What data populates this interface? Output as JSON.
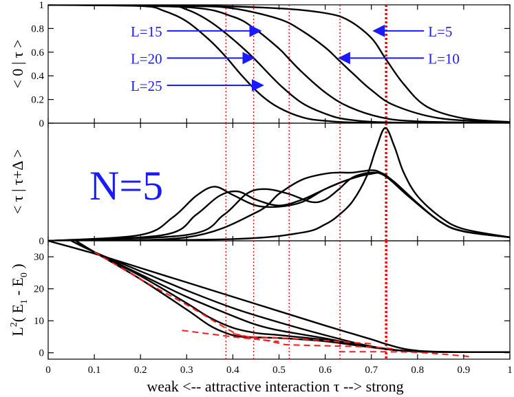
{
  "chart_data": {
    "type": "line",
    "title": "",
    "xlabel": "weak  <--  attractive interaction τ  -->  strong",
    "xlim": [
      0,
      1
    ],
    "x_ticks": [
      0,
      0.1,
      0.2,
      0.3,
      0.4,
      0.5,
      0.6,
      0.7,
      0.8,
      0.9,
      1
    ],
    "x_tick_labels": [
      "0",
      "0.1",
      "0.2",
      "0.3",
      "0.4",
      "0.5",
      "0.6",
      "0.7",
      "0.8",
      "0.9",
      "1"
    ],
    "annotation_N": "N=5",
    "vlines": [
      {
        "x": 0.385,
        "style": "dotted",
        "color": "#ff0000"
      },
      {
        "x": 0.445,
        "style": "dotted",
        "color": "#ff0000"
      },
      {
        "x": 0.522,
        "style": "dotted",
        "color": "#ff0000"
      },
      {
        "x": 0.632,
        "style": "dotted",
        "color": "#ff0000"
      },
      {
        "x": 0.732,
        "style": "dotted-thick",
        "color": "#ff0000"
      }
    ],
    "panels": [
      {
        "name": "overlap",
        "ylabel": "< 0 | τ >",
        "ylim": [
          0,
          1
        ],
        "y_ticks": [
          0,
          0.2,
          0.4,
          0.6,
          0.8,
          1
        ],
        "y_tick_labels": [
          "0",
          "0.2",
          "0.4",
          "0.6",
          "0.8",
          "1"
        ],
        "series": [
          {
            "name": "L=5",
            "x": [
              0,
              0.3,
              0.5,
              0.6,
              0.65,
              0.7,
              0.73,
              0.77,
              0.82,
              0.9,
              1.0
            ],
            "y": [
              1,
              0.995,
              0.97,
              0.93,
              0.87,
              0.72,
              0.55,
              0.33,
              0.14,
              0.04,
              0.01
            ]
          },
          {
            "name": "L=10",
            "x": [
              0,
              0.3,
              0.4,
              0.5,
              0.55,
              0.6,
              0.63,
              0.66,
              0.7,
              0.75,
              0.85,
              1.0
            ],
            "y": [
              1,
              0.99,
              0.97,
              0.88,
              0.78,
              0.64,
              0.53,
              0.42,
              0.28,
              0.15,
              0.04,
              0.005
            ]
          },
          {
            "name": "L=15",
            "x": [
              0,
              0.3,
              0.4,
              0.45,
              0.5,
              0.52,
              0.55,
              0.6,
              0.65,
              0.72,
              0.8,
              1.0
            ],
            "y": [
              1,
              0.98,
              0.9,
              0.79,
              0.63,
              0.55,
              0.43,
              0.26,
              0.14,
              0.05,
              0.015,
              0
            ]
          },
          {
            "name": "L=20",
            "x": [
              0,
              0.25,
              0.3,
              0.35,
              0.4,
              0.445,
              0.5,
              0.55,
              0.6,
              0.65,
              0.75,
              1.0
            ],
            "y": [
              1,
              0.99,
              0.96,
              0.86,
              0.71,
              0.55,
              0.33,
              0.17,
              0.08,
              0.03,
              0.005,
              0
            ]
          },
          {
            "name": "L=25",
            "x": [
              0,
              0.2,
              0.25,
              0.3,
              0.35,
              0.385,
              0.42,
              0.46,
              0.5,
              0.55,
              0.6,
              0.7,
              1.0
            ],
            "y": [
              1,
              0.99,
              0.95,
              0.86,
              0.7,
              0.56,
              0.4,
              0.24,
              0.13,
              0.05,
              0.02,
              0.003,
              0
            ]
          }
        ],
        "arrows": [
          {
            "label": "L=15",
            "text_x": 0.15,
            "text_y": 0.78,
            "tip_x": 0.46,
            "tip_y": 0.78,
            "direction": "right"
          },
          {
            "label": "L=20",
            "text_x": 0.15,
            "text_y": 0.55,
            "tip_x": 0.445,
            "tip_y": 0.55,
            "direction": "right"
          },
          {
            "label": "L=25",
            "text_x": 0.15,
            "text_y": 0.32,
            "tip_x": 0.465,
            "tip_y": 0.32,
            "direction": "right"
          },
          {
            "label": "L=5",
            "text_x": 0.82,
            "text_y": 0.78,
            "tip_x": 0.705,
            "tip_y": 0.78,
            "direction": "left"
          },
          {
            "label": "L=10",
            "text_x": 0.82,
            "text_y": 0.55,
            "tip_x": 0.63,
            "tip_y": 0.55,
            "direction": "left"
          }
        ]
      },
      {
        "name": "fidelity",
        "ylabel": "< τ | τ+Δ >",
        "ylim": [
          0,
          1
        ],
        "y_ticks": [
          0
        ],
        "y_tick_labels": [
          "0"
        ],
        "series": [
          {
            "name": "L=5",
            "x": [
              0,
              0.4,
              0.55,
              0.6,
              0.63,
              0.66,
              0.69,
              0.71,
              0.73,
              0.75,
              0.77,
              0.8,
              0.85,
              0.9,
              1.0
            ],
            "y": [
              0.0,
              0.015,
              0.07,
              0.14,
              0.22,
              0.34,
              0.55,
              0.78,
              0.96,
              0.8,
              0.58,
              0.38,
              0.2,
              0.1,
              0.03
            ]
          },
          {
            "name": "L=10",
            "x": [
              0,
              0.3,
              0.45,
              0.5,
              0.55,
              0.6,
              0.63,
              0.66,
              0.7,
              0.72,
              0.75,
              0.8,
              0.85,
              0.9,
              1.0
            ],
            "y": [
              0.0,
              0.03,
              0.24,
              0.4,
              0.52,
              0.57,
              0.58,
              0.58,
              0.6,
              0.58,
              0.5,
              0.32,
              0.16,
              0.08,
              0.03
            ]
          },
          {
            "name": "L=15",
            "x": [
              0,
              0.3,
              0.38,
              0.43,
              0.47,
              0.52,
              0.57,
              0.6,
              0.63,
              0.66,
              0.7,
              0.73,
              0.78,
              0.85,
              0.9,
              1.0
            ],
            "y": [
              0.0,
              0.05,
              0.22,
              0.4,
              0.44,
              0.4,
              0.33,
              0.35,
              0.44,
              0.54,
              0.58,
              0.55,
              0.38,
              0.16,
              0.08,
              0.03
            ]
          },
          {
            "name": "L=20",
            "x": [
              0,
              0.25,
              0.32,
              0.37,
              0.41,
              0.45,
              0.5,
              0.55,
              0.6,
              0.65,
              0.7,
              0.73,
              0.78,
              0.85,
              0.9,
              1.0
            ],
            "y": [
              0.0,
              0.05,
              0.22,
              0.38,
              0.42,
              0.35,
              0.3,
              0.35,
              0.44,
              0.52,
              0.57,
              0.56,
              0.38,
              0.16,
              0.08,
              0.03
            ]
          },
          {
            "name": "L=25",
            "x": [
              0,
              0.2,
              0.27,
              0.32,
              0.36,
              0.4,
              0.45,
              0.5,
              0.55,
              0.6,
              0.65,
              0.7,
              0.73,
              0.78,
              0.85,
              0.9,
              1.0
            ],
            "y": [
              0.0,
              0.05,
              0.2,
              0.38,
              0.46,
              0.39,
              0.3,
              0.29,
              0.33,
              0.44,
              0.52,
              0.57,
              0.56,
              0.38,
              0.16,
              0.08,
              0.03
            ]
          }
        ]
      },
      {
        "name": "gap",
        "ylabel": "L² ( E₁ - E₀ )",
        "ylabel_parts": {
          "L": "L",
          "sq": "2",
          "open": "( E",
          "sub1": "1",
          "mid": " - E",
          "sub0": "0",
          "close": " )"
        },
        "ylim": [
          -2,
          35
        ],
        "y_ticks": [
          0,
          10,
          20,
          30
        ],
        "y_tick_labels": [
          "0",
          "10",
          "20",
          "30"
        ],
        "series": [
          {
            "name": "L=5",
            "x": [
              0,
              0.1,
              0.2,
              0.3,
              0.4,
              0.5,
              0.6,
              0.7,
              0.73,
              0.78,
              0.85,
              1.0
            ],
            "y": [
              35,
              31,
              26.5,
              22,
              17.5,
              13,
              8.5,
              4.2,
              2.8,
              1.0,
              0.3,
              0.2
            ]
          },
          {
            "name": "L=10",
            "x": [
              0.05,
              0.1,
              0.2,
              0.3,
              0.4,
              0.5,
              0.6,
              0.7,
              0.8,
              1.0
            ],
            "y": [
              35,
              31.5,
              25.5,
              19.5,
              14,
              9.5,
              5.5,
              2.0,
              0.4,
              0.2
            ]
          },
          {
            "name": "L=15",
            "x": [
              0.06,
              0.1,
              0.2,
              0.3,
              0.4,
              0.45,
              0.5,
              0.6,
              0.7,
              0.8,
              1.0
            ],
            "y": [
              35,
              31.5,
              24.5,
              17.5,
              11.5,
              8.8,
              7,
              4.5,
              1.8,
              0.4,
              0.2
            ]
          },
          {
            "name": "L=20",
            "x": [
              0.06,
              0.1,
              0.2,
              0.3,
              0.35,
              0.4,
              0.45,
              0.5,
              0.6,
              0.7,
              0.8,
              1.0
            ],
            "y": [
              35,
              31.5,
              24,
              15.5,
              11,
              7.8,
              6.2,
              5.5,
              4.0,
              1.8,
              0.4,
              0.2
            ]
          },
          {
            "name": "L=25",
            "x": [
              0.06,
              0.1,
              0.2,
              0.3,
              0.35,
              0.385,
              0.42,
              0.5,
              0.6,
              0.7,
              0.8,
              1.0
            ],
            "y": [
              35,
              31.5,
              23,
              13.5,
              8.5,
              6.2,
              5.0,
              4.6,
              3.6,
              1.7,
              0.4,
              0.2
            ]
          }
        ],
        "dashed_series": [
          {
            "name": "fit-1",
            "x": [
              0.1,
              0.2,
              0.3,
              0.4,
              0.44
            ],
            "y": [
              31.5,
              23,
              15,
              6.5,
              4.5
            ]
          },
          {
            "name": "fit-2",
            "x": [
              0.29,
              0.4,
              0.5
            ],
            "y": [
              7,
              5,
              3.5
            ]
          },
          {
            "name": "fit-3",
            "x": [
              0.4,
              0.5,
              0.52,
              0.6,
              0.7,
              0.75
            ],
            "y": [
              6,
              3.0,
              2.5,
              2.2,
              1.8,
              1.2
            ]
          },
          {
            "name": "fit-4",
            "x": [
              0.44,
              0.52,
              0.6,
              0.63,
              0.7
            ],
            "y": [
              5,
              4.5,
              3.8,
              3.5,
              2.8
            ]
          },
          {
            "name": "fit-5",
            "x": [
              0.63,
              0.73,
              0.8,
              0.9,
              0.92
            ],
            "y": [
              0.3,
              0.3,
              0.1,
              -1.0,
              -1.5
            ]
          }
        ]
      }
    ]
  }
}
